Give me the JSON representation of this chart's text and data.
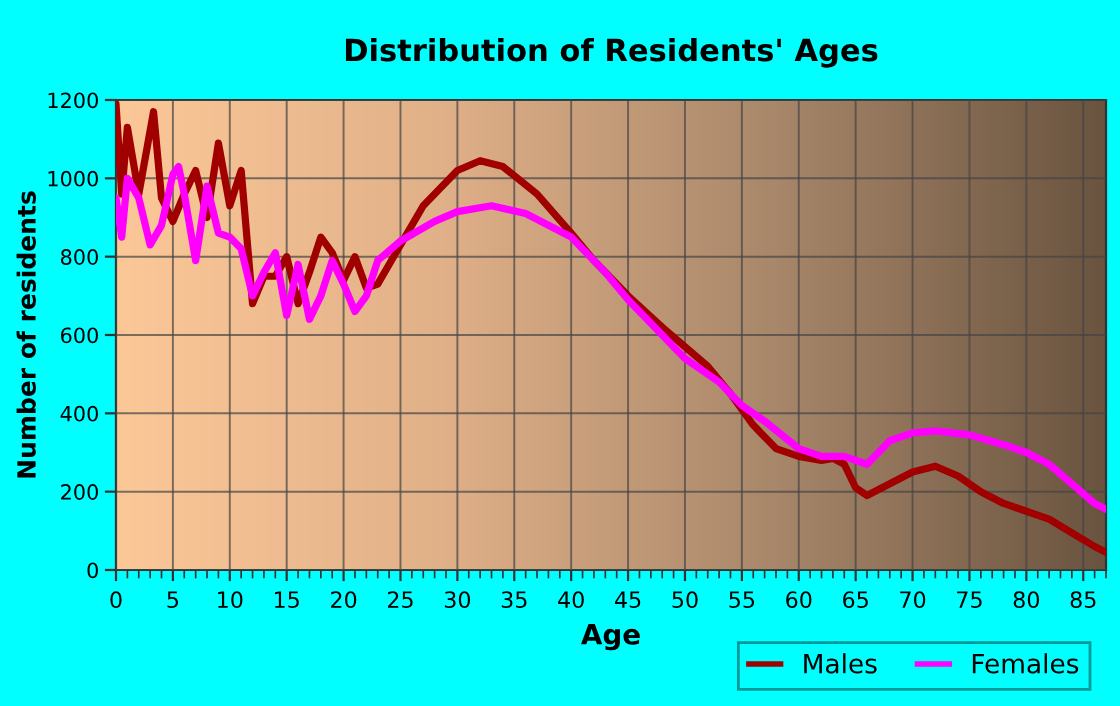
{
  "chart_data": {
    "type": "line",
    "title": "Distribution of Residents' Ages",
    "xlabel": "Age",
    "ylabel": "Number of residents",
    "xlim": [
      0,
      87
    ],
    "ylim": [
      0,
      1200
    ],
    "xticks": [
      0,
      5,
      10,
      15,
      20,
      25,
      30,
      35,
      40,
      45,
      50,
      55,
      60,
      65,
      70,
      75,
      80,
      85
    ],
    "yticks": [
      0,
      200,
      400,
      600,
      800,
      1000,
      1200
    ],
    "grid": true,
    "legend": "bottom right",
    "marker": "none",
    "line_style": "solid",
    "series": [
      {
        "name": "Males",
        "color": "#a00000",
        "x": [
          0,
          0.5,
          1,
          2,
          3.3,
          4,
          5,
          6,
          7,
          8,
          9,
          10,
          11,
          12,
          13,
          14,
          15,
          16,
          17,
          18,
          19,
          20,
          21,
          22,
          23,
          24,
          25,
          27,
          30,
          32,
          34,
          37,
          40,
          42,
          45,
          48,
          50,
          52,
          54,
          56,
          58,
          60,
          62,
          63,
          64,
          65,
          66,
          68,
          70,
          72,
          74,
          76,
          78,
          80,
          82,
          84,
          86,
          87
        ],
        "values": [
          1190,
          960,
          1130,
          960,
          1170,
          950,
          890,
          960,
          1020,
          900,
          1090,
          930,
          1020,
          680,
          750,
          750,
          800,
          680,
          760,
          850,
          810,
          740,
          800,
          720,
          730,
          780,
          830,
          930,
          1020,
          1045,
          1030,
          960,
          860,
          790,
          700,
          620,
          570,
          520,
          450,
          370,
          310,
          290,
          280,
          285,
          270,
          210,
          190,
          220,
          250,
          265,
          240,
          200,
          170,
          150,
          130,
          95,
          60,
          45
        ]
      },
      {
        "name": "Females",
        "color": "#ff00ff",
        "x": [
          0,
          0.5,
          1,
          2,
          3,
          4,
          5,
          5.5,
          6,
          7,
          8,
          9,
          10,
          11,
          12,
          13,
          14,
          15,
          16,
          17,
          18,
          19,
          20,
          21,
          22,
          23,
          25,
          28,
          30,
          33,
          36,
          40,
          43,
          45,
          48,
          50,
          53,
          55,
          57,
          60,
          62,
          64,
          66,
          68,
          70,
          72,
          75,
          78,
          80,
          82,
          84,
          86,
          87
        ],
        "values": [
          950,
          850,
          1000,
          950,
          830,
          880,
          1010,
          1030,
          960,
          790,
          980,
          860,
          850,
          820,
          700,
          760,
          810,
          650,
          780,
          640,
          700,
          790,
          730,
          660,
          700,
          790,
          840,
          890,
          915,
          930,
          910,
          850,
          760,
          690,
          600,
          540,
          480,
          420,
          380,
          310,
          290,
          290,
          270,
          330,
          350,
          355,
          345,
          320,
          300,
          270,
          220,
          170,
          155
        ]
      }
    ]
  }
}
